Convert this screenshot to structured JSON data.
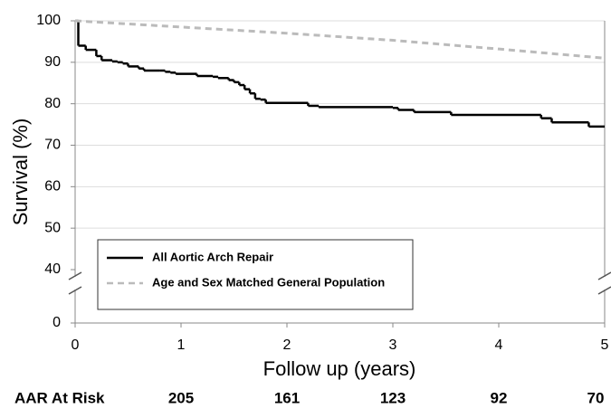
{
  "chart_data": {
    "type": "step-line",
    "x_label": "Follow up (years)",
    "y_label": "Survival (%)",
    "xlim": [
      0,
      5
    ],
    "xticks": [
      0,
      1,
      2,
      3,
      4,
      5
    ],
    "ylim": [
      0,
      100
    ],
    "yticks": [
      0,
      40,
      50,
      60,
      70,
      80,
      90,
      100
    ],
    "y_break": [
      0,
      40
    ],
    "grid": true,
    "legend": "bottom-left",
    "series": [
      {
        "name": "All Aortic Arch Repair",
        "color": "#000000",
        "style": "solid",
        "step": true,
        "x": [
          0,
          0.03,
          0.1,
          0.2,
          0.25,
          0.35,
          0.4,
          0.45,
          0.5,
          0.6,
          0.65,
          0.8,
          0.85,
          0.9,
          0.95,
          1.15,
          1.3,
          1.35,
          1.45,
          1.5,
          1.55,
          1.6,
          1.65,
          1.7,
          1.75,
          1.8,
          2.2,
          2.3,
          3.0,
          3.05,
          3.2,
          3.55,
          4.4,
          4.5,
          4.85
        ],
        "values": [
          100,
          94,
          93,
          91.5,
          90.5,
          90.2,
          90,
          89.7,
          89,
          88.5,
          88,
          88,
          87.7,
          87.5,
          87.2,
          86.7,
          86.5,
          86.2,
          85.7,
          85.2,
          84.5,
          83.5,
          82.5,
          81.2,
          81,
          80.2,
          79.5,
          79.2,
          79,
          78.5,
          78,
          77.3,
          76.5,
          75.5,
          74.5
        ]
      },
      {
        "name": "Age and Sex Matched General Population",
        "color": "#bbbbbb",
        "style": "dashed",
        "step": false,
        "x": [
          0,
          1,
          2,
          3,
          4,
          5
        ],
        "values": [
          100,
          98.5,
          97,
          95.3,
          93.2,
          91
        ]
      }
    ],
    "at_risk": {
      "label": "AAR At Risk",
      "x": [
        1,
        2,
        3,
        4,
        5
      ],
      "values": [
        205,
        161,
        123,
        92,
        70
      ]
    }
  }
}
